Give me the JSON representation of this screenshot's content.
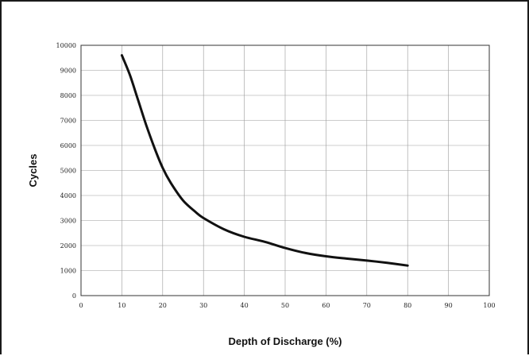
{
  "chart_data": {
    "type": "line",
    "title": "",
    "xlabel": "Depth of Discharge (%)",
    "ylabel": "Cycles",
    "xlim": [
      0,
      100
    ],
    "ylim": [
      0,
      10000
    ],
    "xticks": [
      0,
      10,
      20,
      30,
      40,
      50,
      60,
      70,
      80,
      90,
      100
    ],
    "yticks": [
      0,
      1000,
      2000,
      3000,
      4000,
      5000,
      6000,
      7000,
      8000,
      9000,
      10000
    ],
    "grid": true,
    "legend": "none",
    "series": [
      {
        "x": [
          10,
          12,
          14,
          16,
          18,
          20,
          22,
          25,
          28,
          30,
          35,
          40,
          45,
          50,
          55,
          60,
          65,
          70,
          75,
          80
        ],
        "values": [
          9600,
          8800,
          7800,
          6800,
          5900,
          5100,
          4500,
          3800,
          3350,
          3100,
          2650,
          2350,
          2150,
          1900,
          1700,
          1570,
          1480,
          1400,
          1310,
          1200
        ],
        "color": "#111111"
      }
    ]
  }
}
